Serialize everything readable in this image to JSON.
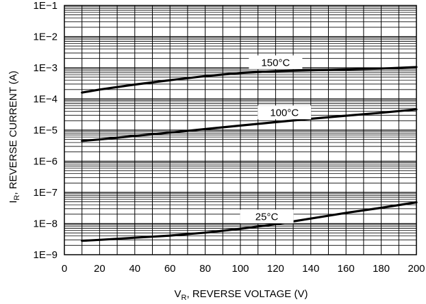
{
  "chart_data": {
    "type": "line",
    "title": "",
    "xlabel": {
      "main": "V",
      "sub": "R",
      "rest": ", REVERSE VOLTAGE (V)"
    },
    "ylabel": {
      "main": "I",
      "sub": "R",
      "rest": ", REVERSE CURRENT (A)"
    },
    "x_scale": "linear",
    "y_scale": "log",
    "xlim": [
      0,
      200
    ],
    "ylim": [
      1e-09,
      0.1
    ],
    "x_ticks": [
      0,
      20,
      40,
      60,
      80,
      100,
      120,
      140,
      160,
      180,
      200
    ],
    "x_tick_labels": [
      "0",
      "20",
      "40",
      "60",
      "80",
      "100",
      "120",
      "140",
      "160",
      "180",
      "200"
    ],
    "y_ticks": [
      1e-09,
      1e-08,
      1e-07,
      1e-06,
      1e-05,
      0.0001,
      0.001,
      0.01,
      0.1
    ],
    "y_tick_labels": [
      "1E−9",
      "1E−8",
      "1E−7",
      "1E−6",
      "1E−5",
      "1E−4",
      "1E−3",
      "1E−2",
      "1E−1"
    ],
    "grid": true,
    "series": [
      {
        "name": "150°C",
        "x": [
          10,
          20,
          40,
          60,
          80,
          100,
          120,
          140,
          160,
          180,
          200
        ],
        "y": [
          0.00016,
          0.0002,
          0.00029,
          0.0004,
          0.00054,
          0.00068,
          0.00078,
          0.00083,
          0.00088,
          0.00094,
          0.00105
        ],
        "label_x": 120
      },
      {
        "name": "100°C",
        "x": [
          10,
          20,
          40,
          60,
          80,
          100,
          120,
          140,
          160,
          180,
          200
        ],
        "y": [
          4.5e-06,
          5e-06,
          6.5e-06,
          8.3e-06,
          1.08e-05,
          1.4e-05,
          1.8e-05,
          2.3e-05,
          2.9e-05,
          3.6e-05,
          4.6e-05
        ],
        "label_x": 125
      },
      {
        "name": "25°C",
        "x": [
          10,
          20,
          40,
          60,
          80,
          100,
          120,
          140,
          160,
          180,
          200
        ],
        "y": [
          2.8e-09,
          3e-09,
          3.5e-09,
          4.1e-09,
          5.1e-09,
          6.8e-09,
          9.5e-09,
          1.45e-08,
          2.2e-08,
          3.2e-08,
          4.8e-08
        ],
        "label_x": 115
      }
    ]
  }
}
